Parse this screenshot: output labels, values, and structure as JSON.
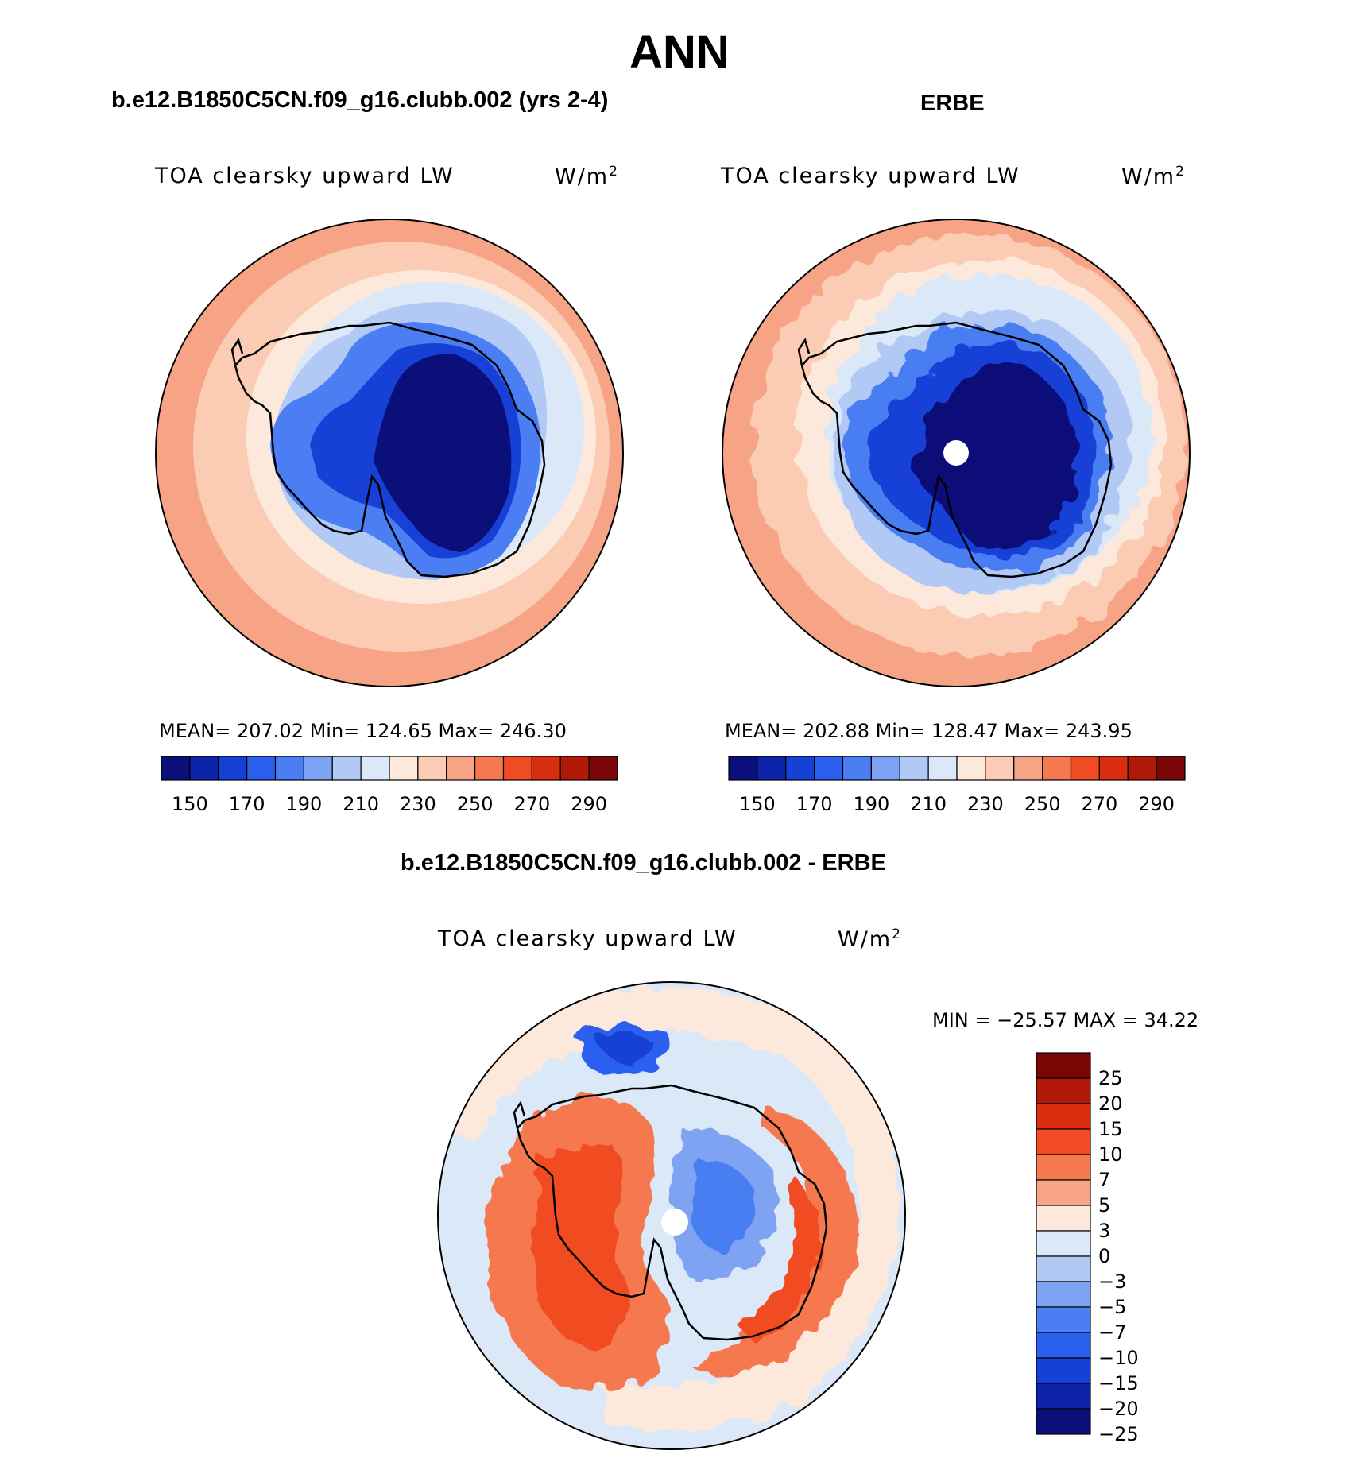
{
  "main_title": "ANN",
  "panels": [
    {
      "id": "model",
      "case_title": "b.e12.B1850C5CN.f09_g16.clubb.002 (yrs 2-4)",
      "field_label": "TOA clearsky upward LW",
      "units": "W/m",
      "units_sup": "2",
      "stats": "MEAN= 207.02   Min= 124.65   Max= 246.30"
    },
    {
      "id": "obs",
      "case_title": "ERBE",
      "field_label": "TOA clearsky upward LW",
      "units": "W/m",
      "units_sup": "2",
      "stats": "MEAN= 202.88   Min= 128.47   Max= 243.95"
    },
    {
      "id": "diff",
      "case_title": "b.e12.B1850C5CN.f09_g16.clubb.002 - ERBE",
      "field_label": "TOA clearsky upward LW",
      "units": "W/m",
      "units_sup": "2",
      "stats": "MIN = −25.57 MAX =   34.22"
    }
  ],
  "chart_data": [
    {
      "type": "heatmap",
      "projection": "south polar stereographic",
      "title": "b.e12.B1850C5CN.f09_g16.clubb.002 (yrs 2-4)",
      "variable": "TOA clearsky upward LW",
      "units": "W/m2",
      "mean": 207.02,
      "min": 124.65,
      "max": 246.3,
      "colorbar_orientation": "horizontal",
      "colorbar_colors": [
        "#0a0f7a",
        "#0d23a8",
        "#1640d6",
        "#2a5ff0",
        "#4a7ef2",
        "#7ea3f3",
        "#b2c9f5",
        "#dae8f8",
        "#fde9dc",
        "#fbcbb4",
        "#f7a486",
        "#f5784f",
        "#f14b24",
        "#d82e0f",
        "#b11a08",
        "#7a0606"
      ],
      "colorbar_tick_labels": [
        "150",
        "170",
        "190",
        "210",
        "230",
        "250",
        "270",
        "290"
      ]
    },
    {
      "type": "heatmap",
      "projection": "south polar stereographic",
      "title": "ERBE",
      "variable": "TOA clearsky upward LW",
      "units": "W/m2",
      "mean": 202.88,
      "min": 128.47,
      "max": 243.95,
      "colorbar_orientation": "horizontal",
      "colorbar_colors": [
        "#0a0f7a",
        "#0d23a8",
        "#1640d6",
        "#2a5ff0",
        "#4a7ef2",
        "#7ea3f3",
        "#b2c9f5",
        "#dae8f8",
        "#fde9dc",
        "#fbcbb4",
        "#f7a486",
        "#f5784f",
        "#f14b24",
        "#d82e0f",
        "#b11a08",
        "#7a0606"
      ],
      "colorbar_tick_labels": [
        "150",
        "170",
        "190",
        "210",
        "230",
        "250",
        "270",
        "290"
      ]
    },
    {
      "type": "heatmap",
      "projection": "south polar stereographic",
      "title": "b.e12.B1850C5CN.f09_g16.clubb.002 - ERBE",
      "variable": "TOA clearsky upward LW",
      "units": "W/m2",
      "min": -25.57,
      "max": 34.22,
      "colorbar_orientation": "vertical",
      "colorbar_colors": [
        "#7a0606",
        "#b11a08",
        "#d82e0f",
        "#f14b24",
        "#f5784f",
        "#f7a486",
        "#fde9dc",
        "#dae8f8",
        "#b2c9f5",
        "#7ea3f3",
        "#4a7ef2",
        "#2a5ff0",
        "#1640d6",
        "#0d23a8",
        "#0a0f7a"
      ],
      "colorbar_tick_labels": [
        "25",
        "20",
        "15",
        "10",
        "7",
        "5",
        "3",
        "0",
        "−3",
        "−5",
        "−7",
        "−10",
        "−15",
        "−20",
        "−25"
      ]
    }
  ]
}
